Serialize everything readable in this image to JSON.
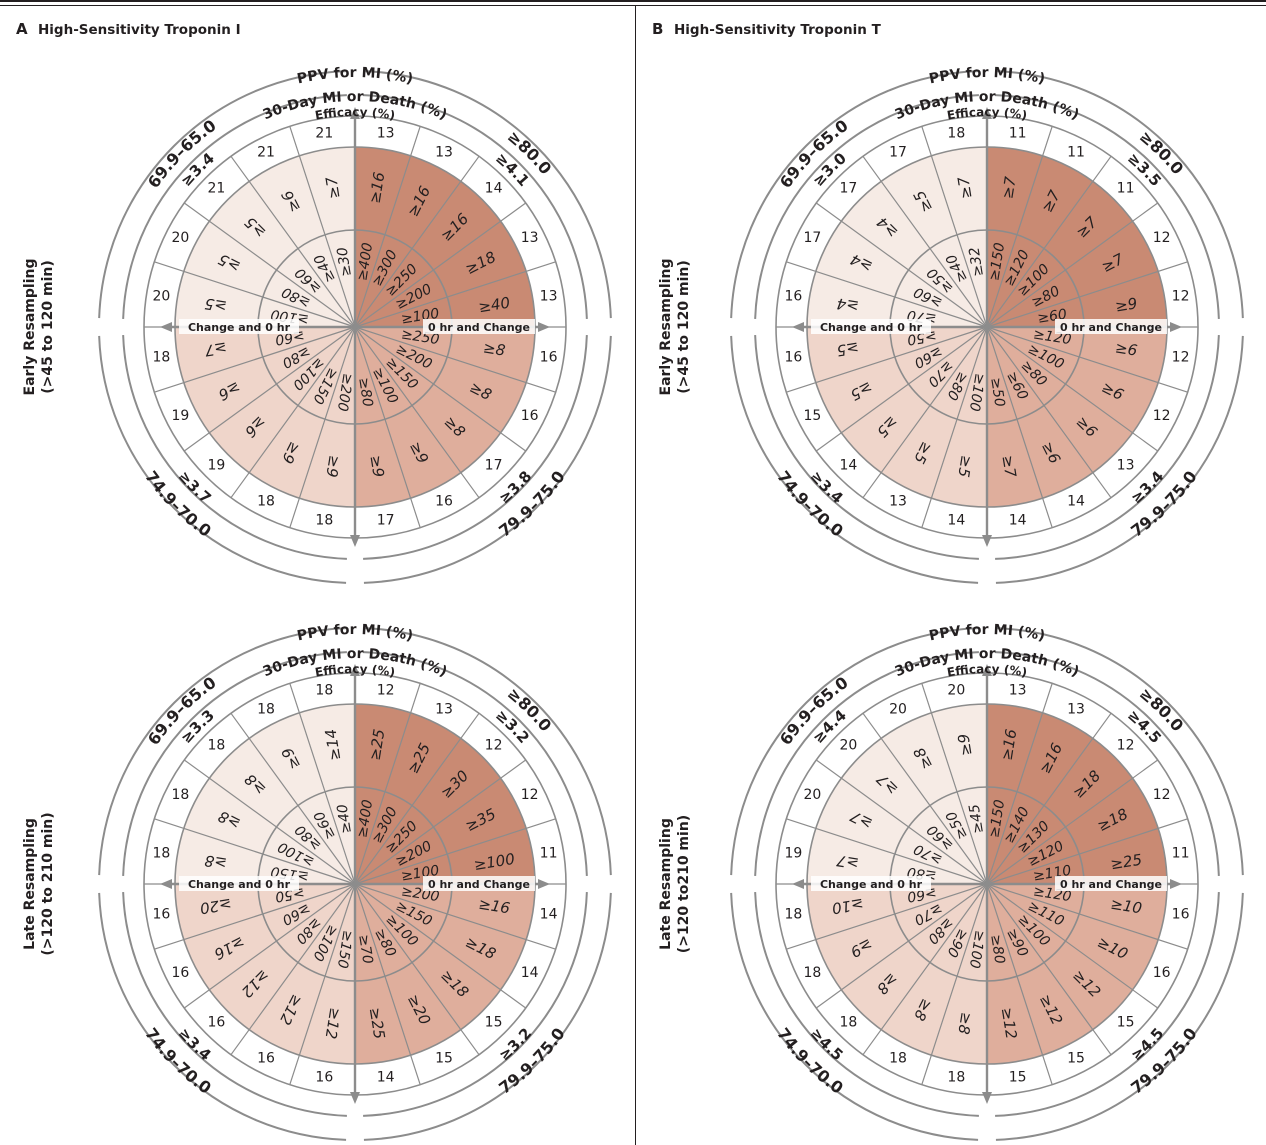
{
  "panels": [
    {
      "letter": "A",
      "title": "High-Sensitivity Troponin I",
      "arc_labels": {
        "ppv": "PPV for MI (%)",
        "mi_death": "30-Day MI or Death (%)",
        "efficacy": "Efficacy (%)"
      },
      "axis_labels": {
        "left": "Change and 0 hr",
        "right": "0 hr and Change"
      },
      "rows": [
        {
          "label_line1": "Early Resampling",
          "label_line2": "(>45 to 120 min)",
          "ppv_bands": [
            "79.9–75.0",
            "74.9–70.0",
            "69.9–65.0",
            "≥80.0"
          ],
          "death_values": [
            "≥3.8",
            "≥3.7",
            "≥3.4",
            "≥4.1"
          ],
          "efficacy": [
            "13",
            "13",
            "14",
            "13",
            "13",
            "16",
            "16",
            "17",
            "16",
            "17",
            "18",
            "18",
            "19",
            "19",
            "18",
            "20",
            "20",
            "21",
            "21",
            "21"
          ],
          "change": [
            "≥16",
            "≥16",
            "≥16",
            "≥18",
            "≥40",
            "≥8",
            "≥8",
            "≥8",
            "≥9",
            "≥9",
            "≥9",
            "≥9",
            "≥6",
            "≥6",
            "≥7",
            "≥5",
            "≥5",
            "≥5",
            "≥6",
            "≥7"
          ],
          "zero_hr": [
            "≥400",
            "≥300",
            "≥250",
            "≥200",
            "≥100",
            "≥250",
            "≥200",
            "≥150",
            "≥100",
            "≥80",
            "≥200",
            "≥150",
            "≥100",
            "≥80",
            "≥60",
            "≥100",
            "≥80",
            "≥60",
            "≥40",
            "≥30"
          ]
        },
        {
          "label_line1": "Late Resampling",
          "label_line2": "(>120 to 210 min)",
          "ppv_bands": [
            "79.9–75.0",
            "74.9–70.0",
            "69.9–65.0",
            "≥80.0"
          ],
          "death_values": [
            "≥3.2",
            "≥3.4",
            "≥3.3",
            "≥3.2"
          ],
          "efficacy": [
            "12",
            "13",
            "12",
            "12",
            "11",
            "14",
            "14",
            "15",
            "15",
            "14",
            "16",
            "16",
            "16",
            "16",
            "16",
            "18",
            "18",
            "18",
            "18",
            "18"
          ],
          "change": [
            "≥25",
            "≥25",
            "≥30",
            "≥35",
            "≥100",
            "≥16",
            "≥18",
            "≥18",
            "≥20",
            "≥25",
            "≥12",
            "≥12",
            "≥12",
            "≥16",
            "≥20",
            "≥8",
            "≥8",
            "≥8",
            "≥9",
            "≥14"
          ],
          "zero_hr": [
            "≥400",
            "≥300",
            "≥250",
            "≥200",
            "≥100",
            "≥200",
            "≥150",
            "≥100",
            "≥80",
            "≥70",
            "≥150",
            "≥100",
            "≥80",
            "≥60",
            "≥50",
            "≥150",
            "≥100",
            "≥80",
            "≥60",
            "≥40"
          ]
        }
      ]
    },
    {
      "letter": "B",
      "title": "High-Sensitivity Troponin T",
      "arc_labels": {
        "ppv": "PPV for MI (%)",
        "mi_death": "30-Day MI or Death (%)",
        "efficacy": "Efficacy (%)"
      },
      "axis_labels": {
        "left": "Change and 0 hr",
        "right": "0 hr and Change"
      },
      "rows": [
        {
          "label_line1": "Early Resampling",
          "label_line2": "(>45 to 120 min)",
          "ppv_bands": [
            "79.9–75.0",
            "74.9–70.0",
            "69.9–65.0",
            "≥80.0"
          ],
          "death_values": [
            "≥3.4",
            "≥3.4",
            "≥3.0",
            "≥3.5"
          ],
          "efficacy": [
            "11",
            "11",
            "11",
            "12",
            "12",
            "12",
            "12",
            "13",
            "14",
            "14",
            "14",
            "13",
            "14",
            "15",
            "16",
            "16",
            "17",
            "17",
            "17",
            "18"
          ],
          "change": [
            "≥7",
            "≥7",
            "≥7",
            "≥7",
            "≥9",
            "≥6",
            "≥6",
            "≥6",
            "≥6",
            "≥7",
            "≥5",
            "≥5",
            "≥5",
            "≥5",
            "≥5",
            "≥4",
            "≥4",
            "≥4",
            "≥5",
            "≥7"
          ],
          "zero_hr": [
            "≥150",
            "≥120",
            "≥100",
            "≥80",
            "≥60",
            "≥120",
            "≥100",
            "≥80",
            "≥60",
            "≥50",
            "≥100",
            "≥80",
            "≥70",
            "≥60",
            "≥50",
            "≥70",
            "≥60",
            "≥50",
            "≥40",
            "≥32"
          ]
        },
        {
          "label_line1": "Late Resampling",
          "label_line2": "(>120 to210 min)",
          "ppv_bands": [
            "79.9–75.0",
            "74.9–70.0",
            "69.9–65.0",
            "≥80.0"
          ],
          "death_values": [
            "≥4.5",
            "≥4.5",
            "≥4.4",
            "≥4.5"
          ],
          "efficacy": [
            "13",
            "13",
            "12",
            "12",
            "11",
            "16",
            "16",
            "15",
            "15",
            "15",
            "18",
            "18",
            "18",
            "18",
            "18",
            "19",
            "20",
            "20",
            "20",
            "20"
          ],
          "change": [
            "≥16",
            "≥16",
            "≥18",
            "≥18",
            "≥25",
            "≥10",
            "≥10",
            "≥12",
            "≥12",
            "≥12",
            "≥8",
            "≥8",
            "≥8",
            "≥9",
            "≥10",
            "≥7",
            "≥7",
            "≥7",
            "≥8",
            "≥9"
          ],
          "zero_hr": [
            "≥150",
            "≥140",
            "≥130",
            "≥120",
            "≥110",
            "≥120",
            "≥110",
            "≥100",
            "≥90",
            "≥80",
            "≥100",
            "≥90",
            "≥80",
            "≥70",
            "≥60",
            "≥80",
            "≥70",
            "≥60",
            "≥50",
            "≥45"
          ]
        }
      ]
    }
  ],
  "colors": {
    "q_top_right": "#c98a73",
    "q_bottom_right": "#dfae9c",
    "q_bottom_left": "#efd5ca",
    "q_top_left": "#f6ebe5",
    "ring_line": "#8c8c8c",
    "frame": "#231f20",
    "text": "#231f20"
  }
}
